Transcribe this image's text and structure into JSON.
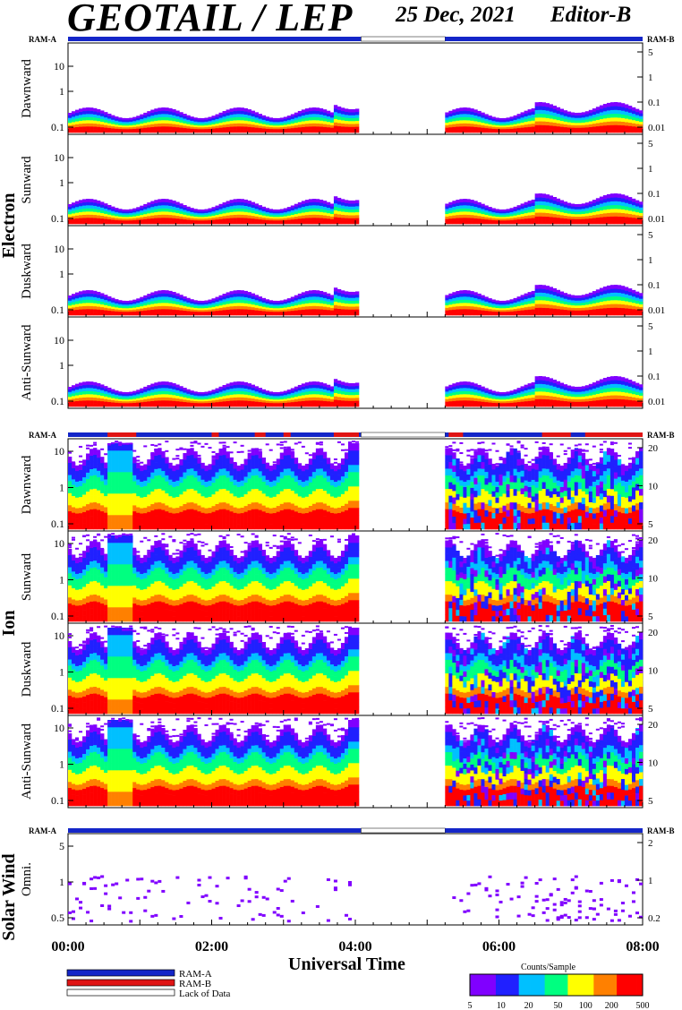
{
  "header": {
    "title": "GEOTAIL / LEP",
    "date": "25 Dec, 2021",
    "editor": "Editor-B"
  },
  "chart_data": {
    "type": "heatmap",
    "x_axis": {
      "label": "Universal Time",
      "range": [
        "00:00",
        "08:00"
      ],
      "ticks": [
        "00:00",
        "02:00",
        "04:00",
        "06:00",
        "08:00"
      ]
    },
    "data_gap": {
      "start": "04:05",
      "end": "05:15"
    },
    "status_bar_labels": {
      "left": "RAM-A",
      "right": "RAM-B"
    },
    "groups": [
      {
        "name": "Electron",
        "left_ticks": [
          "10",
          "1",
          "0.1"
        ],
        "right_ticks": [
          "5",
          "1",
          "0.1",
          "0.01"
        ],
        "panels": [
          {
            "name": "Dawnward",
            "noise": 0.25,
            "spike": [
              0.3,
              0.9
            ]
          },
          {
            "name": "Sunward",
            "noise": 0.15,
            "spike": [
              0.3,
              0.5
            ]
          },
          {
            "name": "Duskward",
            "noise": 0.25,
            "spike": [
              0.28,
              0.9
            ]
          },
          {
            "name": "Anti-Sunward",
            "noise": 0.15,
            "spike": [
              0.3,
              0.4
            ]
          }
        ]
      },
      {
        "name": "Ion",
        "left_ticks": [
          "10",
          "1",
          "0.1"
        ],
        "right_ticks": [
          "20",
          "10",
          "5"
        ],
        "panels": [
          {
            "name": "Dawnward"
          },
          {
            "name": "Sunward"
          },
          {
            "name": "Duskward"
          },
          {
            "name": "Anti-Sunward"
          }
        ]
      },
      {
        "name": "Solar Wind",
        "left_ticks": [
          "5",
          "1",
          "0.5"
        ],
        "right_ticks": [
          "2",
          "1",
          "0.2"
        ],
        "panels": [
          {
            "name": "Omni."
          }
        ]
      }
    ],
    "legend": [
      {
        "label": "RAM-A",
        "color": "#1426c8"
      },
      {
        "label": "RAM-B",
        "color": "#e01414"
      },
      {
        "label": "Lack of Data",
        "color": "#ffffff"
      }
    ],
    "colorbar": {
      "title": "Counts/Sample",
      "ticks": [
        "5",
        "10",
        "20",
        "50",
        "100",
        "200",
        "500"
      ],
      "colors": [
        "#8000ff",
        "#2020ff",
        "#00c0ff",
        "#00ff80",
        "#ffff00",
        "#ff8000",
        "#ff0000"
      ]
    }
  }
}
